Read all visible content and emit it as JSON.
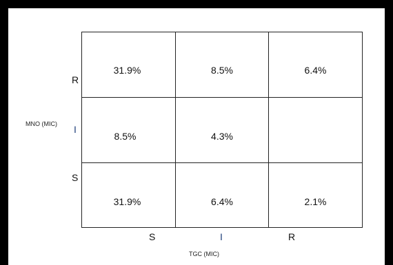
{
  "chart_data": {
    "type": "heatmap",
    "xlabel": "TGC (MIC)",
    "ylabel": "MNO (MIC)",
    "x_categories": [
      "S",
      "I",
      "R"
    ],
    "y_categories": [
      "R",
      "I",
      "S"
    ],
    "cells": [
      [
        "31.9%",
        "8.5%",
        "6.4%"
      ],
      [
        "8.5%",
        "4.3%",
        ""
      ],
      [
        "31.9%",
        "6.4%",
        "2.1%"
      ]
    ],
    "values": [
      [
        31.9,
        8.5,
        6.4
      ],
      [
        8.5,
        4.3,
        null
      ],
      [
        31.9,
        6.4,
        2.1
      ]
    ],
    "unit": "%",
    "grid": true
  }
}
